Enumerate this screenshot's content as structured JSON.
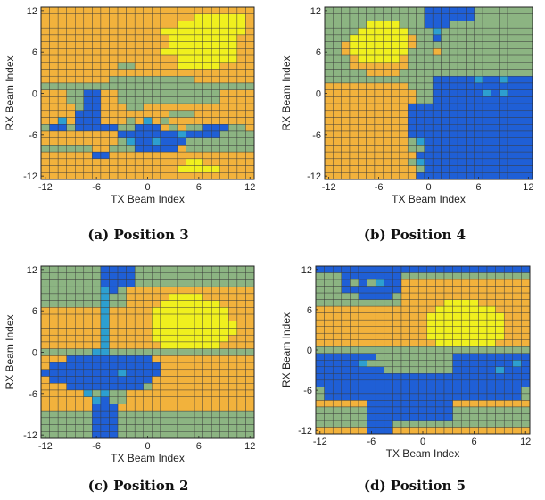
{
  "chart_data": [
    {
      "type": "heatmap",
      "caption": "(a) Position 3",
      "xlabel": "TX Beam Index",
      "ylabel": "RX Beam Index",
      "x_ticks": [
        "-12",
        "-6",
        "0",
        "6",
        "12"
      ],
      "y_ticks": [
        "12",
        "6",
        "0",
        "-6",
        "-12"
      ],
      "xlim": [
        -12,
        12
      ],
      "ylim": [
        -12,
        12
      ],
      "colors": {
        "low": "#1f5fd6",
        "mid_low": "#2d9fd0",
        "mid": "#8cb482",
        "mid_high": "#f2b23c",
        "high": "#f0f01e"
      },
      "rows": [
        "3333333333333333333333333",
        "3333333333333333334444443",
        "3333333333333333444444443",
        "3333333333333344444444443",
        "3333333333333334444444433",
        "3333333333333334444444433",
        "3333333333333344444444433",
        "3333333333333333444444433",
        "3333333332233333444443333",
        "3333333333333333333333333",
        "3333333322222222223333333",
        "2222222222222222222222222",
        "3332200332222222222223333",
        "3332200332222222222223333",
        "3333200333223333333333333",
        "3333000333333332223333333",
        "3313000333231323333333333",
        "2002000002200032322000223",
        "3333333330000000100002222",
        "3333333332100100022222222",
        "2222223322200000322222222",
        "3333330033333333333333333",
        "3333333333333333344333333",
        "3333333333333333444443333",
        "3333333333333333333333333"
      ]
    },
    {
      "type": "heatmap",
      "caption": "(b) Position 4",
      "xlabel": "TX Beam Index",
      "ylabel": "RX Beam Index",
      "x_ticks": [
        "-12",
        "-6",
        "0",
        "6",
        "12"
      ],
      "y_ticks": [
        "12",
        "6",
        "0",
        "-6",
        "-12"
      ],
      "xlim": [
        -12,
        12
      ],
      "ylim": [
        -12,
        12
      ],
      "colors": {
        "low": "#1f5fd6",
        "mid_low": "#2d9fd0",
        "mid": "#8cb482",
        "mid_high": "#f2b23c",
        "high": "#f0f01e"
      },
      "rows": [
        "2222222222220000002222222",
        "2222222222220000002222222",
        "2222244442220002222222222",
        "2222444444222122222222222",
        "2224444444322022222222222",
        "2234444444322222222222222",
        "2234444444222322222222222",
        "2223444443222222222222222",
        "2223333333222222222222222",
        "2222233332222222222222222",
        "2222222222222000001001000",
        "3333333333222000000000000",
        "3333333333322000000101000",
        "3333333333322000000000000",
        "3333333333000000000000000",
        "3333333333000000000000000",
        "3333333333000000000000000",
        "3333333333000000000000000",
        "3333333333000000000000000",
        "3333333333210000000000000",
        "3333333333220000000000000",
        "3333333333300000000000000",
        "3333333333210000000000000",
        "3333333333320000000000000",
        "3333333333300000000000000"
      ]
    },
    {
      "type": "heatmap",
      "caption": "(c) Position 2",
      "xlabel": "TX Beam Index",
      "ylabel": "RX Beam Index",
      "x_ticks": [
        "-12",
        "-6",
        "0",
        "6",
        "12"
      ],
      "y_ticks": [
        "12",
        "6",
        "0",
        "-6",
        "-12"
      ],
      "xlim": [
        -12,
        12
      ],
      "ylim": [
        -12,
        12
      ],
      "colors": {
        "low": "#1f5fd6",
        "mid_low": "#2d9fd0",
        "mid": "#8cb482",
        "mid_high": "#f2b23c",
        "high": "#f0f01e"
      },
      "rows": [
        "2222222000022222222222222",
        "2222222000022222222222222",
        "2222222000022222222222222",
        "2222222102333333333333333",
        "2222222122333334444333333",
        "2222222122333344444443333",
        "3333333133333444444444333",
        "3333333133333444444444333",
        "3333333133333444444444433",
        "3333333133333444444444433",
        "3333333133333444444444333",
        "3333333133333344444443333",
        "2222221122222222222222222",
        "3330000000000333333333333",
        "3000000000000033333333333",
        "0000000001000033333333333",
        "3000000000000333333333333",
        "3330000000002333333333333",
        "3333312122333333333333333",
        "3333331022333333333333333",
        "3333330003333333333333333",
        "2222220002222222222222222",
        "2222220002222222222222222",
        "2222220002222222222222222",
        "2222220002222222222222222"
      ]
    },
    {
      "type": "heatmap",
      "caption": "(d) Position 5",
      "xlabel": "TX Beam Index",
      "ylabel": "RX Beam Index",
      "x_ticks": [
        "-12",
        "-6",
        "0",
        "6",
        "12"
      ],
      "y_ticks": [
        "12",
        "6",
        "0",
        "-6",
        "-12"
      ],
      "xlim": [
        -12,
        12
      ],
      "ylim": [
        -12,
        12
      ],
      "colors": {
        "low": "#1f5fd6",
        "mid_low": "#2d9fd0",
        "mid": "#8cb482",
        "mid_high": "#f2b23c",
        "high": "#f0f01e"
      },
      "rows": [
        "0000000000000000000000000",
        "2220000000222222222222222",
        "2220202100333333333333333",
        "2220000000333333333333333",
        "2222200002333333333333333",
        "2222222222333334444333333",
        "3333333333333344444443333",
        "3333333333333444444444333",
        "3333333333333444444444333",
        "3333333333333444444444333",
        "3333333333333444444444333",
        "3333333333333344444443333",
        "2222222222222222222222222",
        "0000000222222222000000000",
        "0000012222222222000000010",
        "0000000022222222000001000",
        "0000000000000000000000000",
        "0000000000000000000000000",
        "2000000000000000000000002",
        "2000000000000000000000002",
        "3333330000000000333333333",
        "2222220000000000222222222",
        "2222220000000000222222222",
        "2222220002222222222222222",
        "3333330003333333333333333"
      ]
    }
  ]
}
